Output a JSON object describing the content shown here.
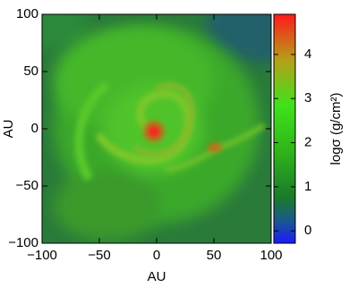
{
  "chart_data": {
    "type": "heatmap",
    "xlabel": "AU",
    "ylabel": "AU",
    "xlim": [
      -100,
      100
    ],
    "ylim": [
      -100,
      100
    ],
    "xticks": [
      {
        "value": -100,
        "label": "−100"
      },
      {
        "value": -50,
        "label": "−50"
      },
      0,
      50,
      100
    ],
    "yticks": [
      {
        "value": -100,
        "label": "−100"
      },
      {
        "value": -50,
        "label": "−50"
      },
      0,
      50,
      100
    ],
    "colorbar_label": "logσ (g/cm²)",
    "clim": [
      -0.28,
      4.91
    ],
    "cticks": [
      0,
      1,
      2,
      3,
      4
    ]
  }
}
